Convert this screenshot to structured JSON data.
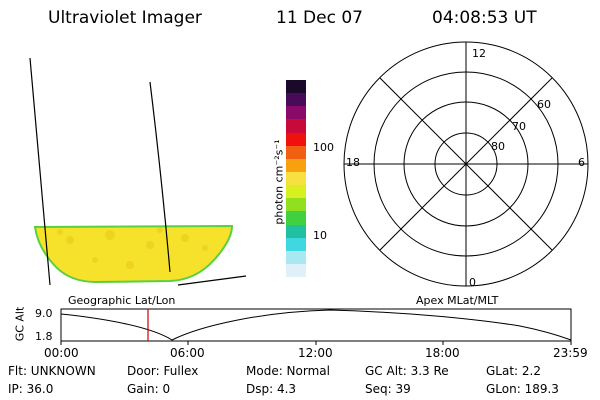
{
  "header": {
    "title": "Ultraviolet Imager",
    "date": "11 Dec 07",
    "time": "04:08:53 UT"
  },
  "colorbar": {
    "unit_label": "photon cm⁻²s⁻¹",
    "ticks": [
      "100",
      "10"
    ],
    "colors": [
      "#1a0a2a",
      "#4a0a5a",
      "#8a0a6a",
      "#c80a3a",
      "#f01010",
      "#f06010",
      "#f8a010",
      "#f8e040",
      "#d8f020",
      "#90e020",
      "#40d040",
      "#20c0a0",
      "#40d8e0",
      "#a8e8f0",
      "#e0f0f8"
    ]
  },
  "geo_panel": {
    "caption": "Geographic Lat/Lon",
    "fill_color": "#f6e22a"
  },
  "polar_panel": {
    "caption": "Apex MLat/MLT",
    "mlt_labels": {
      "top": "12",
      "left": "18",
      "right": "6",
      "bottom": "0"
    },
    "lat_labels": [
      "60",
      "70",
      "80"
    ]
  },
  "timeline": {
    "ylabel": "GC Alt",
    "yticks": [
      "9.0",
      "1.8"
    ],
    "xticks": [
      "00:00",
      "06:00",
      "12:00",
      "18:00",
      "23:59"
    ],
    "marker_color": "#d00000"
  },
  "info": {
    "flt": "Flt: UNKNOWN",
    "door": "Door: Fullex",
    "mode": "Mode: Normal",
    "gc_alt": "GC Alt: 3.3 Re",
    "glat": "GLat:   2.2",
    "ip": "IP: 36.0",
    "gain": "Gain:  0",
    "dsp": "Dsp:     4.3",
    "seq": "Seq: 39",
    "glon": "GLon: 189.3"
  }
}
